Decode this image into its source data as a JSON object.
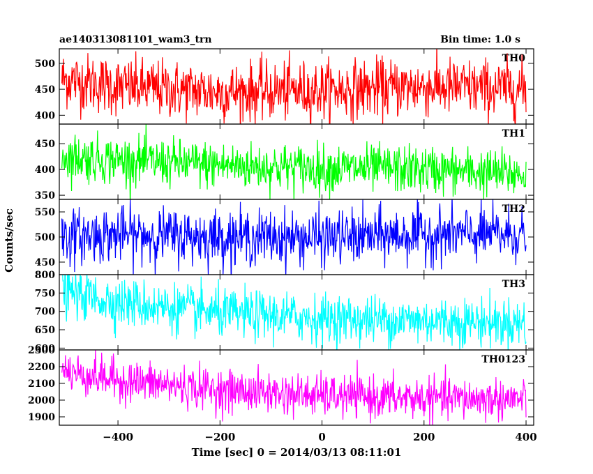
{
  "header": {
    "title": "ae140313081101_wam3_trn",
    "bin_time": "Bin time: 1.0 s"
  },
  "chart_data": {
    "type": "line",
    "xlabel": "Time [sec] 0 = 2014/03/13 08:11:01",
    "ylabel": "Counts/sec",
    "xlim": [
      -515,
      415
    ],
    "x_ticks": [
      -400,
      -200,
      0,
      200,
      400
    ],
    "x_tick_labels": [
      "−400",
      "−200",
      "0",
      "200",
      "400"
    ],
    "x_data_range": [
      -510,
      400
    ],
    "series": [
      {
        "name": "TH0",
        "color": "#ff0000",
        "ylim": [
          383,
          528
        ],
        "yticks": [
          400,
          450,
          500
        ],
        "ytick_labels": [
          "400",
          "450",
          "500"
        ],
        "trend": [
          [
            -510,
            470
          ],
          [
            -400,
            455
          ],
          [
            -200,
            445
          ],
          [
            0,
            448
          ],
          [
            200,
            455
          ],
          [
            400,
            450
          ]
        ],
        "noise": 28
      },
      {
        "name": "TH1",
        "color": "#00ff00",
        "ylim": [
          342,
          488
        ],
        "yticks": [
          350,
          400,
          450
        ],
        "ytick_labels": [
          "350",
          "400",
          "450"
        ],
        "trend": [
          [
            -510,
            425
          ],
          [
            -400,
            418
          ],
          [
            -200,
            408
          ],
          [
            0,
            402
          ],
          [
            200,
            400
          ],
          [
            400,
            390
          ]
        ],
        "noise": 23
      },
      {
        "name": "TH2",
        "color": "#0000ff",
        "ylim": [
          425,
          575
        ],
        "yticks": [
          450,
          500,
          550
        ],
        "ytick_labels": [
          "450",
          "500",
          "550"
        ],
        "trend": [
          [
            -510,
            500
          ],
          [
            -400,
            505
          ],
          [
            -200,
            500
          ],
          [
            0,
            498
          ],
          [
            200,
            505
          ],
          [
            400,
            505
          ]
        ],
        "noise": 27
      },
      {
        "name": "TH3",
        "color": "#00ffff",
        "ylim": [
          595,
          800
        ],
        "yticks": [
          600,
          650,
          700,
          750,
          800
        ],
        "ytick_labels": [
          "600",
          "650",
          "700",
          "750",
          "800"
        ],
        "trend": [
          [
            -510,
            755
          ],
          [
            -400,
            725
          ],
          [
            -200,
            695
          ],
          [
            0,
            680
          ],
          [
            200,
            675
          ],
          [
            400,
            668
          ]
        ],
        "noise": 33
      },
      {
        "name": "TH0123",
        "color": "#ff00ff",
        "ylim": [
          1850,
          2300
        ],
        "yticks": [
          1900,
          2000,
          2100,
          2200,
          2300
        ],
        "ytick_labels": [
          "1900",
          "2000",
          "2100",
          "2200",
          "2300"
        ],
        "trend": [
          [
            -510,
            2175
          ],
          [
            -400,
            2120
          ],
          [
            -200,
            2060
          ],
          [
            0,
            2025
          ],
          [
            200,
            2010
          ],
          [
            400,
            2005
          ]
        ],
        "noise": 62
      }
    ]
  }
}
